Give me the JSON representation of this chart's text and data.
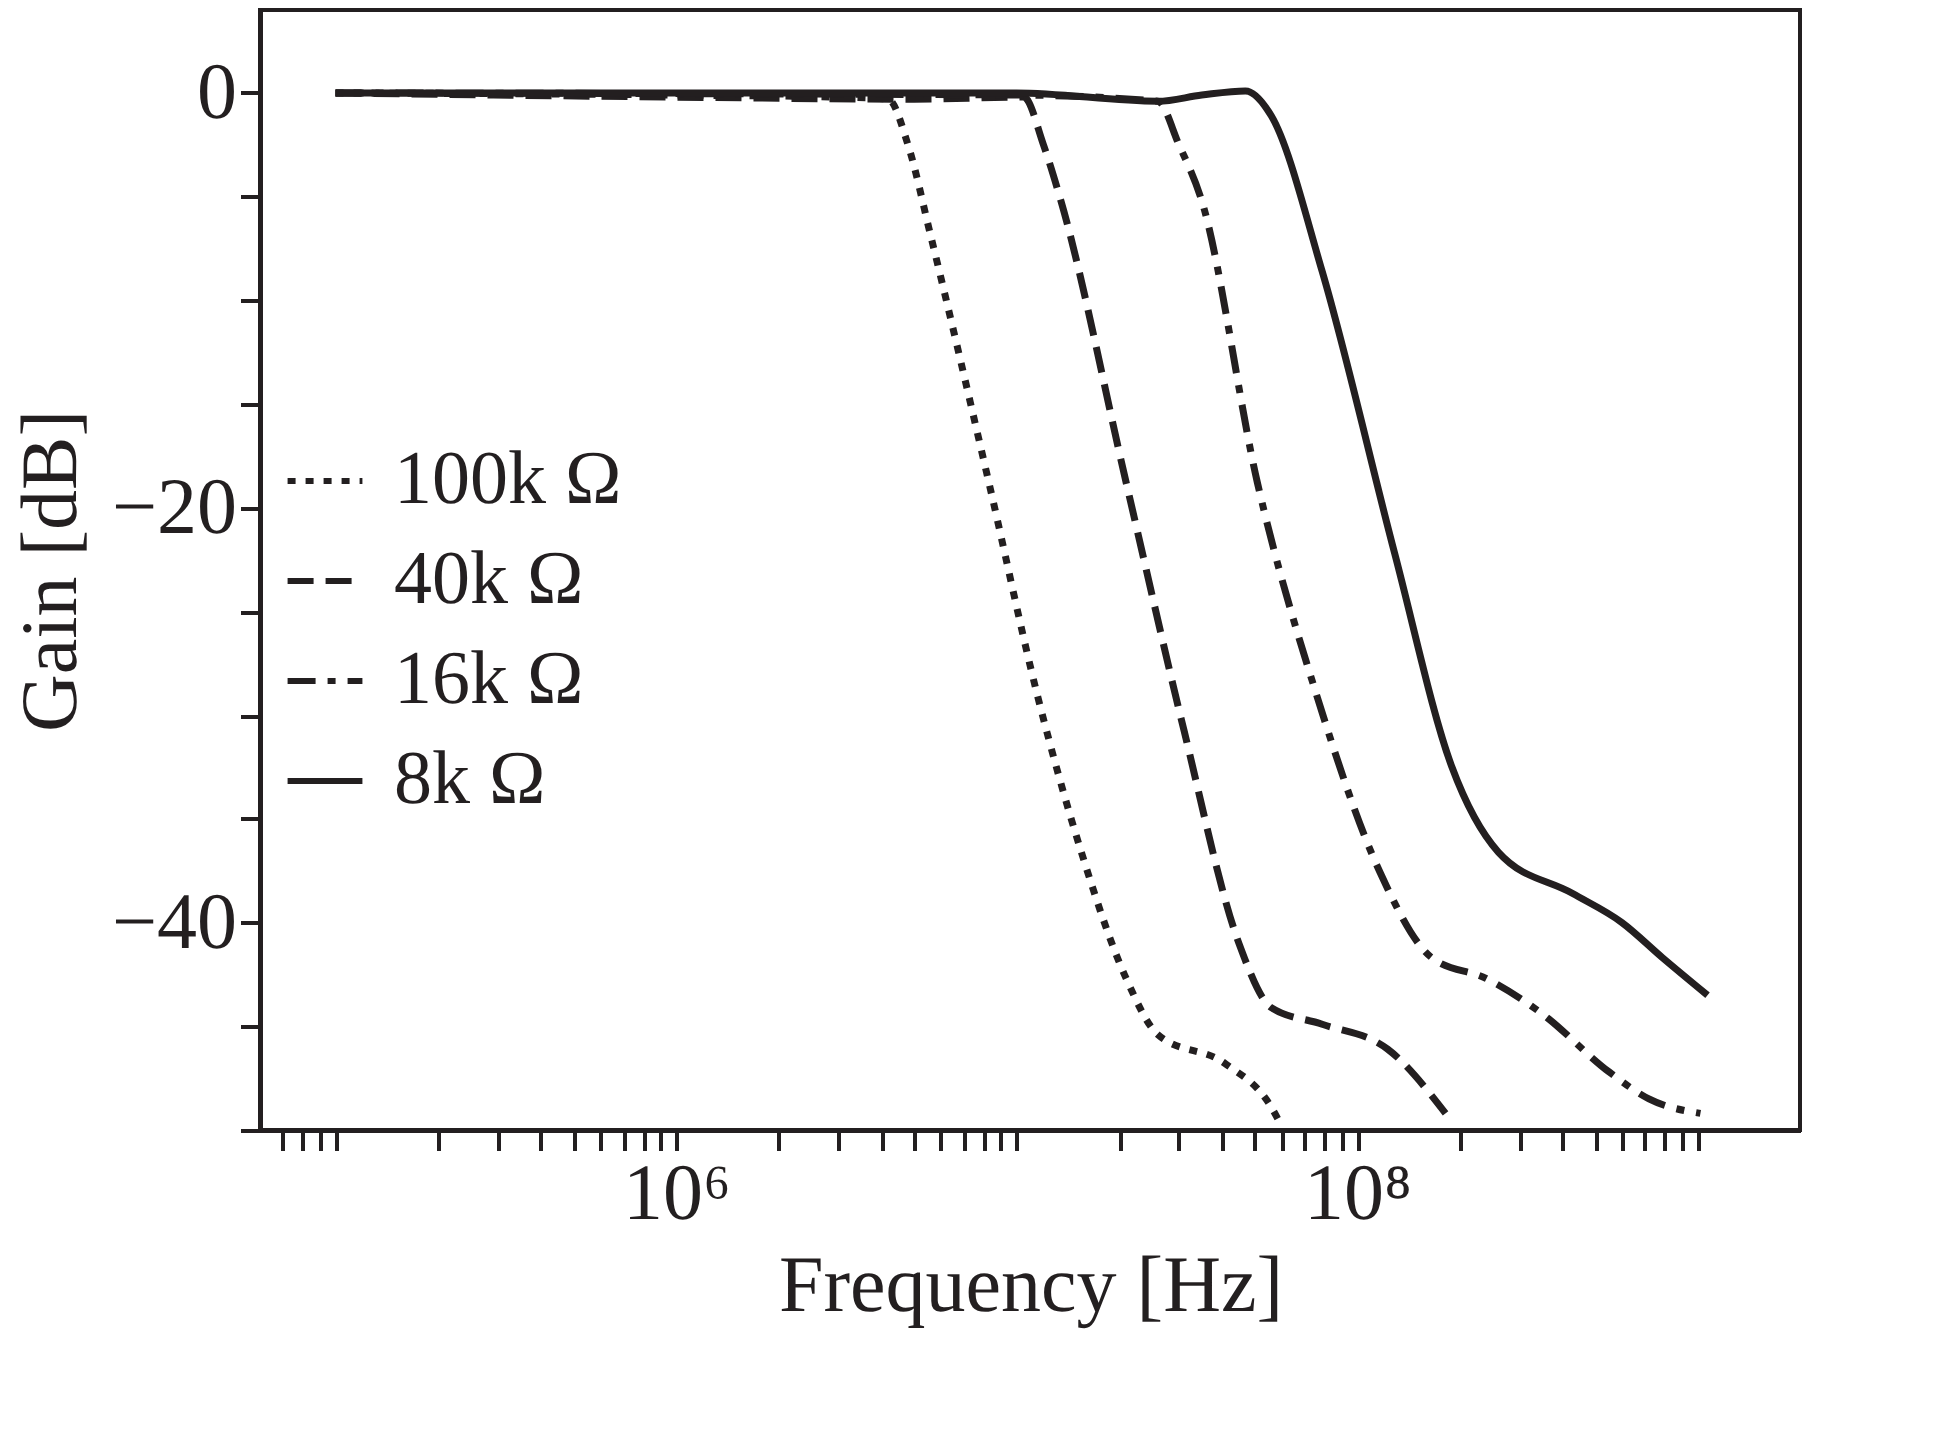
{
  "chart_data": {
    "type": "line",
    "xlabel": "Frequency [Hz]",
    "ylabel": "Gain [dB]",
    "log": "x",
    "grid": false,
    "legend": "left",
    "xlim": [
      60000,
      2000000000
    ],
    "ylim": [
      -50,
      4
    ],
    "xticks": [
      {
        "value": 70000,
        "label": null
      },
      {
        "value": 80000,
        "label": null
      },
      {
        "value": 90000,
        "label": null
      },
      {
        "value": 100000,
        "label": null
      },
      {
        "value": 200000,
        "label": null
      },
      {
        "value": 300000,
        "label": null
      },
      {
        "value": 400000,
        "label": null
      },
      {
        "value": 500000,
        "label": null
      },
      {
        "value": 600000,
        "label": null
      },
      {
        "value": 700000,
        "label": null
      },
      {
        "value": 800000,
        "label": null
      },
      {
        "value": 900000,
        "label": null
      },
      {
        "value": 1000000,
        "label": "10⁶"
      },
      {
        "value": 2000000,
        "label": null
      },
      {
        "value": 3000000,
        "label": null
      },
      {
        "value": 4000000,
        "label": null
      },
      {
        "value": 5000000,
        "label": null
      },
      {
        "value": 6000000,
        "label": null
      },
      {
        "value": 7000000,
        "label": null
      },
      {
        "value": 8000000,
        "label": null
      },
      {
        "value": 9000000,
        "label": null
      },
      {
        "value": 10000000,
        "label": null
      },
      {
        "value": 20000000,
        "label": null
      },
      {
        "value": 30000000,
        "label": null
      },
      {
        "value": 40000000,
        "label": null
      },
      {
        "value": 50000000,
        "label": null
      },
      {
        "value": 60000000,
        "label": null
      },
      {
        "value": 70000000,
        "label": null
      },
      {
        "value": 80000000,
        "label": null
      },
      {
        "value": 90000000,
        "label": null
      },
      {
        "value": 100000000,
        "label": "10⁸"
      },
      {
        "value": 200000000,
        "label": null
      },
      {
        "value": 300000000,
        "label": null
      },
      {
        "value": 400000000,
        "label": null
      },
      {
        "value": 500000000,
        "label": null
      },
      {
        "value": 600000000,
        "label": null
      },
      {
        "value": 700000000,
        "label": null
      },
      {
        "value": 800000000,
        "label": null
      },
      {
        "value": 900000000,
        "label": null
      },
      {
        "value": 1000000000,
        "label": null
      }
    ],
    "yticks": [
      0,
      {
        "value": -5,
        "label": null
      },
      {
        "value": -10,
        "label": null
      },
      {
        "value": -15,
        "label": null
      },
      -20,
      {
        "value": -25,
        "label": null
      },
      {
        "value": -30,
        "label": null
      },
      {
        "value": -35,
        "label": null
      },
      -40,
      {
        "value": -45,
        "label": null
      },
      {
        "value": -50,
        "label": null
      }
    ],
    "series": [
      {
        "name": "100k Ω",
        "color": "#231f20",
        "line_style": "dotted",
        "x": [
          100000,
          1000000,
          3000000,
          4200000,
          4800000,
          5600000,
          8300000,
          11500000,
          15500000,
          21000000,
          26000000,
          41000000,
          56000000,
          60000000
        ],
        "values": [
          0,
          -0.1,
          -0.2,
          -0.3,
          -2.5,
          -6.9,
          -18.8,
          -29,
          -36.6,
          -42.7,
          -45.4,
          -46.8,
          -48.9,
          -49.8
        ]
      },
      {
        "name": "40k Ω",
        "color": "#231f20",
        "line_style": "dashed",
        "x": [
          100000,
          1000000,
          5000000,
          10500000,
          12000000,
          13500000,
          21000000,
          31000000,
          45000000,
          56000000,
          79000000,
          123000000,
          182000000
        ],
        "values": [
          0,
          -0.2,
          -0.3,
          -0.2,
          -2.5,
          -5.2,
          -18.8,
          -30.7,
          -41,
          -44.1,
          -44.9,
          -46.1,
          -49.2
        ]
      },
      {
        "name": "16k Ω",
        "color": "#231f20",
        "line_style": "dashdot",
        "x": [
          100000,
          10000000,
          26000000,
          30000000,
          35000000,
          51000000,
          76000000,
          117000000,
          166000000,
          240000000,
          350000000,
          550000000,
          720000000,
          1020000000
        ],
        "values": [
          0,
          -0.1,
          -0.4,
          -2.5,
          -5.2,
          -18.8,
          -29,
          -37.6,
          -41.7,
          -42.7,
          -44.4,
          -47.2,
          -48.5,
          -49.2
        ]
      },
      {
        "name": "8k Ω",
        "color": "#231f20",
        "line_style": "solid",
        "x": [
          100000,
          10000000,
          26000000,
          35000000,
          47000000,
          56000000,
          79000000,
          129000000,
          190000000,
          260000000,
          430000000,
          600000000,
          790000000,
          1070000000
        ],
        "values": [
          0,
          0,
          -0.4,
          -0.1,
          0.1,
          -1.1,
          -8.6,
          -22.2,
          -32.5,
          -36.6,
          -38.6,
          -40,
          -41.7,
          -43.5
        ]
      }
    ]
  }
}
